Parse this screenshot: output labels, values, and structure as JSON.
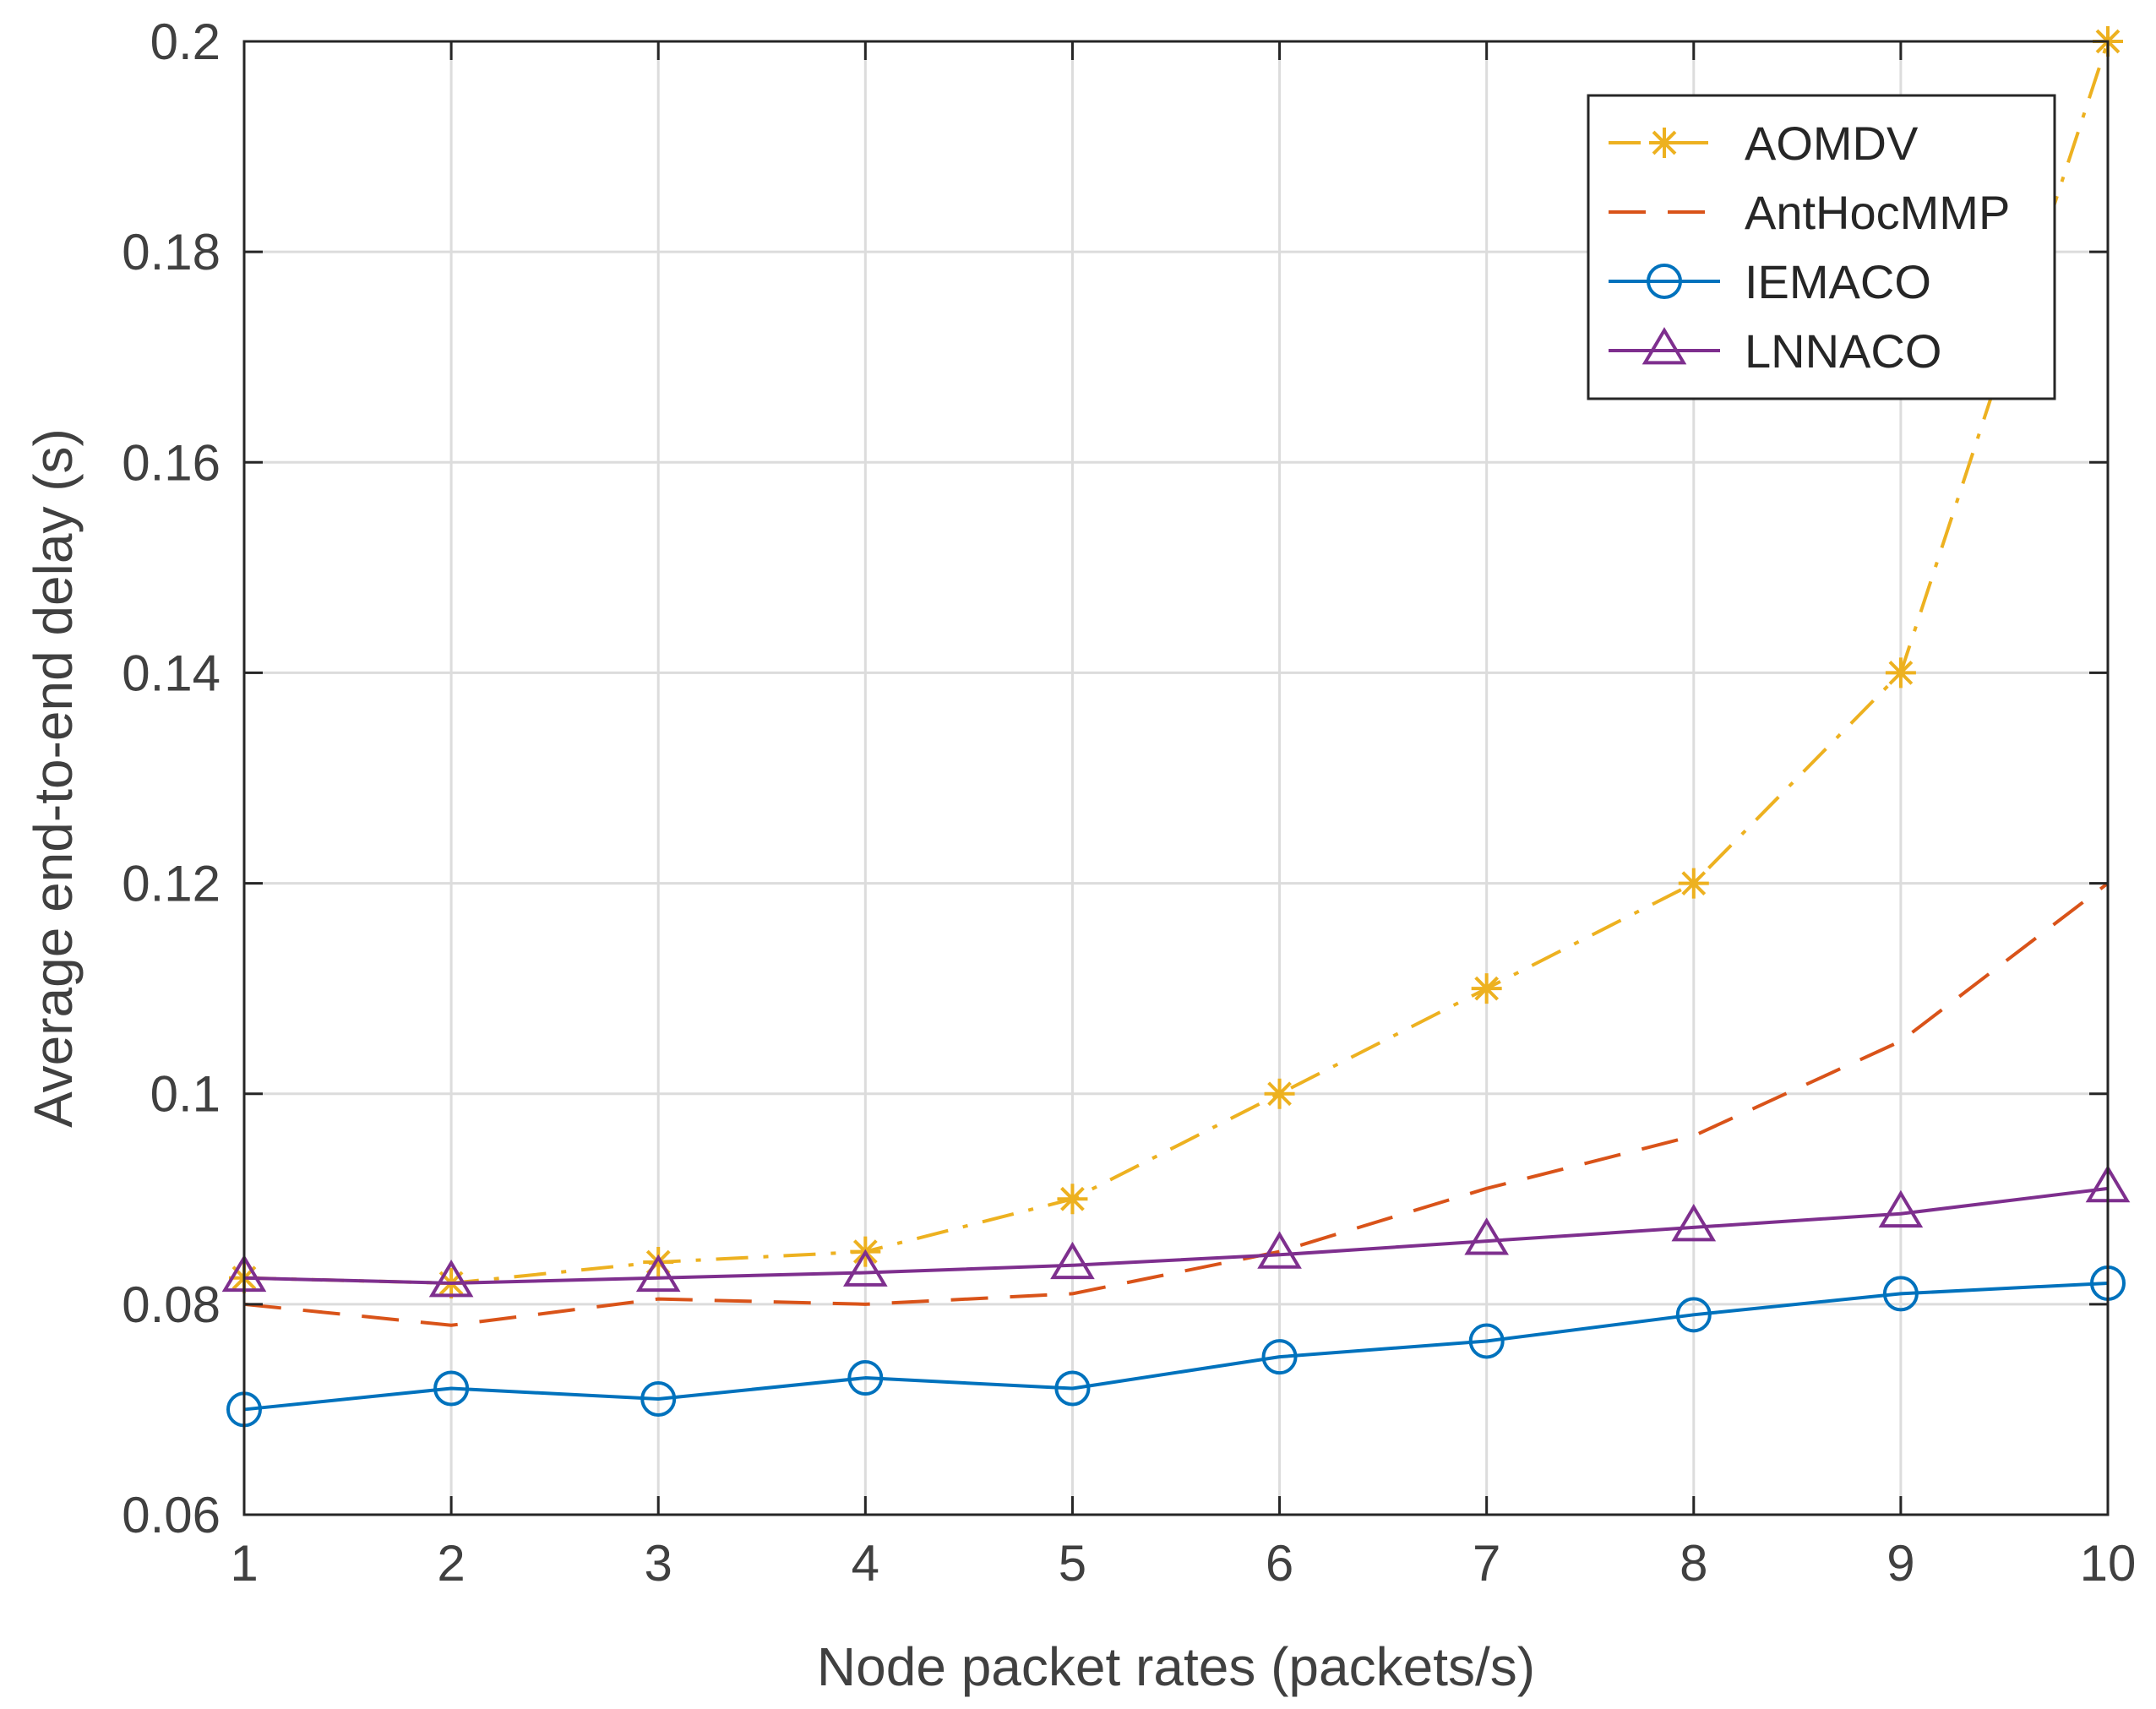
{
  "chart_data": {
    "type": "line",
    "title": "",
    "xlabel": "Node packet rates (packets/s)",
    "ylabel": "Average end-to-end delay (s)",
    "xlim": [
      1,
      10
    ],
    "ylim": [
      0.06,
      0.2
    ],
    "grid": true,
    "legend_position": "top-right",
    "x": [
      1,
      2,
      3,
      4,
      5,
      6,
      7,
      8,
      9,
      10
    ],
    "x_tick_labels": [
      "1",
      "2",
      "3",
      "4",
      "5",
      "6",
      "7",
      "8",
      "9",
      "10"
    ],
    "y_ticks": [
      0.06,
      0.08,
      0.1,
      0.12,
      0.14,
      0.16,
      0.18,
      0.2
    ],
    "y_tick_labels": [
      "0.06",
      "0.08",
      "0.1",
      "0.12",
      "0.14",
      "0.16",
      "0.18",
      "0.2"
    ],
    "series": [
      {
        "name": "AOMDV",
        "color": "#EDB120",
        "line_style": "dash-dot",
        "marker": "asterisk",
        "values": [
          0.0825,
          0.082,
          0.084,
          0.085,
          0.09,
          0.1,
          0.11,
          0.12,
          0.14,
          0.2
        ]
      },
      {
        "name": "AntHocMMP",
        "color": "#D95319",
        "line_style": "dashed",
        "marker": "none",
        "values": [
          0.08,
          0.078,
          0.0805,
          0.08,
          0.081,
          0.085,
          0.091,
          0.096,
          0.105,
          0.12
        ]
      },
      {
        "name": "IEMACO",
        "color": "#0072BD",
        "line_style": "solid",
        "marker": "circle",
        "values": [
          0.07,
          0.072,
          0.071,
          0.073,
          0.072,
          0.075,
          0.0765,
          0.079,
          0.081,
          0.082
        ]
      },
      {
        "name": "LNNACO",
        "color": "#7E2F8E",
        "line_style": "solid",
        "marker": "triangle",
        "values": [
          0.0825,
          0.082,
          0.0825,
          0.083,
          0.0837,
          0.0847,
          0.086,
          0.0873,
          0.0886,
          0.091
        ]
      }
    ]
  }
}
